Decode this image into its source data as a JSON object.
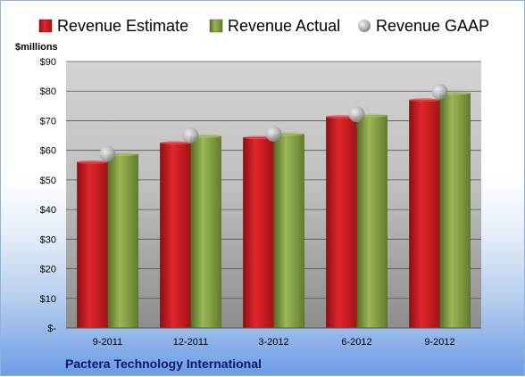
{
  "chart_data": {
    "type": "bar",
    "ylabel": "$millions",
    "ylim": [
      0,
      90
    ],
    "yticks": [
      0,
      10,
      20,
      30,
      40,
      50,
      60,
      70,
      80,
      90
    ],
    "ytick_labels": [
      "$-",
      "$10",
      "$20",
      "$30",
      "$40",
      "$50",
      "$60",
      "$70",
      "$80",
      "$90"
    ],
    "categories": [
      "9-2011",
      "12-2011",
      "3-2012",
      "6-2012",
      "9-2012"
    ],
    "series": [
      {
        "name": "Revenue Estimate",
        "kind": "bar",
        "color": "#c8171d",
        "values": [
          56,
          62.5,
          64.3,
          71.3,
          77
        ]
      },
      {
        "name": "Revenue Actual",
        "kind": "bar",
        "color": "#7c9a3b",
        "values": [
          58.7,
          64.8,
          65.5,
          71.8,
          79.3
        ]
      },
      {
        "name": "Revenue GAAP",
        "kind": "marker",
        "color": "#b9b9b9",
        "values": [
          58.8,
          65,
          65.6,
          72.2,
          79.8
        ]
      }
    ],
    "legend_position": "top",
    "grid": true,
    "caption": "Pactera Technology International"
  }
}
